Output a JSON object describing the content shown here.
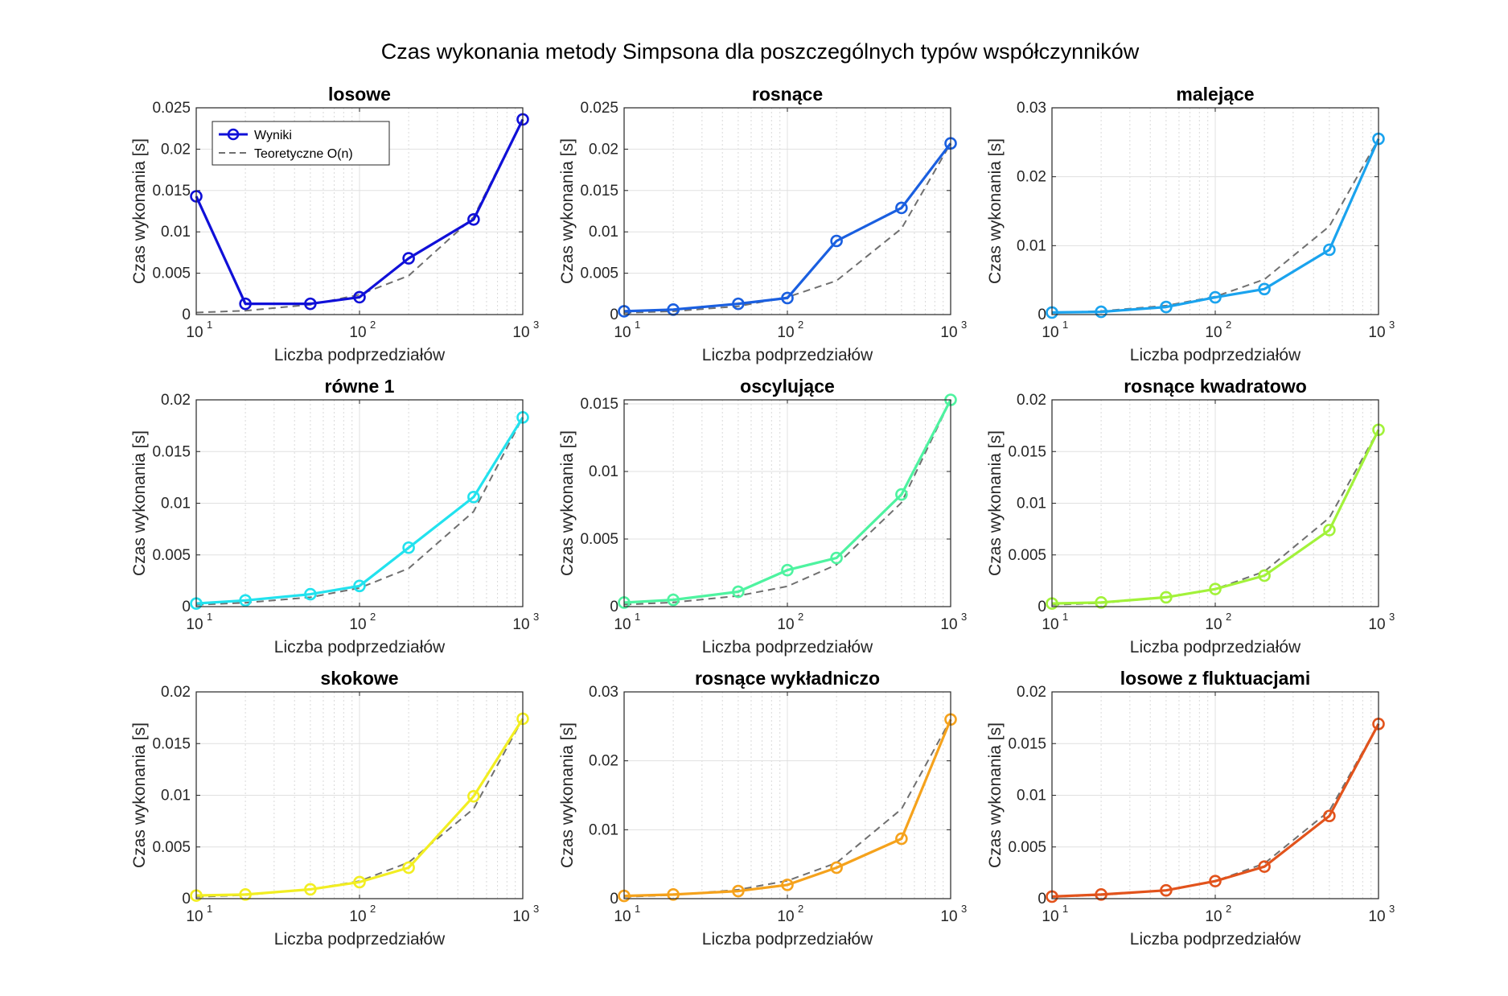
{
  "figure_title": "Czas wykonania metody Simpsona dla poszczególnych typów współczynników",
  "chart_data": [
    {
      "type": "line",
      "title": "losowe",
      "xlabel": "Liczba podprzedziałów",
      "ylabel": "Czas wykonania [s]",
      "x_scale": "log",
      "xlim": [
        10,
        1000
      ],
      "ylim": [
        0,
        0.025
      ],
      "y_ticks": [
        "0",
        "0.005",
        "0.01",
        "0.015",
        "0.02",
        "0.025"
      ],
      "color": "#1010d8",
      "legend": {
        "position": "top-left",
        "entries": [
          "Wyniki",
          "Teoretyczne O(n)"
        ]
      },
      "x": [
        10,
        20,
        50,
        100,
        200,
        500,
        1000
      ],
      "series": [
        {
          "name": "Wyniki",
          "values": [
            0.0143,
            0.0013,
            0.0013,
            0.0021,
            0.0068,
            0.0115,
            0.0236
          ]
        },
        {
          "name": "Teoretyczne O(n)",
          "values": [
            0.00024,
            0.00047,
            0.0012,
            0.0024,
            0.0047,
            0.0118,
            0.0236
          ]
        }
      ]
    },
    {
      "type": "line",
      "title": "rosnące",
      "xlabel": "Liczba podprzedziałów",
      "ylabel": "Czas wykonania [s]",
      "x_scale": "log",
      "xlim": [
        10,
        1000
      ],
      "ylim": [
        0,
        0.025
      ],
      "y_ticks": [
        "0",
        "0.005",
        "0.01",
        "0.015",
        "0.02",
        "0.025"
      ],
      "color": "#1a5fe0",
      "x": [
        10,
        20,
        50,
        100,
        200,
        500,
        1000
      ],
      "series": [
        {
          "name": "Wyniki",
          "values": [
            0.0004,
            0.0006,
            0.0013,
            0.002,
            0.0089,
            0.0129,
            0.0207
          ]
        },
        {
          "name": "Teoretyczne O(n)",
          "values": [
            0.0002,
            0.0004,
            0.001,
            0.0021,
            0.0041,
            0.0104,
            0.0207
          ]
        }
      ]
    },
    {
      "type": "line",
      "title": "malejące",
      "xlabel": "Liczba podprzedziałów",
      "ylabel": "Czas wykonania [s]",
      "x_scale": "log",
      "xlim": [
        10,
        1000
      ],
      "ylim": [
        0,
        0.03
      ],
      "y_ticks": [
        "0",
        "0.01",
        "0.02",
        "0.03"
      ],
      "color": "#1aa3ee",
      "x": [
        10,
        20,
        50,
        100,
        200,
        500,
        1000
      ],
      "series": [
        {
          "name": "Wyniki",
          "values": [
            0.0003,
            0.0004,
            0.0011,
            0.0025,
            0.0037,
            0.0094,
            0.0255
          ]
        },
        {
          "name": "Teoretyczne O(n)",
          "values": [
            0.00026,
            0.00051,
            0.0013,
            0.0026,
            0.0051,
            0.0128,
            0.0255
          ]
        }
      ]
    },
    {
      "type": "line",
      "title": "równe 1",
      "xlabel": "Liczba podprzedziałów",
      "ylabel": "Czas wykonania [s]",
      "x_scale": "log",
      "xlim": [
        10,
        1000
      ],
      "ylim": [
        0,
        0.02
      ],
      "y_ticks": [
        "0",
        "0.005",
        "0.01",
        "0.015",
        "0.02"
      ],
      "color": "#22e2ee",
      "x": [
        10,
        20,
        50,
        100,
        200,
        500,
        1000
      ],
      "series": [
        {
          "name": "Wyniki",
          "values": [
            0.0003,
            0.0006,
            0.0012,
            0.002,
            0.0057,
            0.0106,
            0.0183
          ]
        },
        {
          "name": "Teoretyczne O(n)",
          "values": [
            0.00018,
            0.00037,
            0.0009,
            0.0018,
            0.0037,
            0.0092,
            0.0183
          ]
        }
      ]
    },
    {
      "type": "line",
      "title": "oscylujące",
      "xlabel": "Liczba podprzedziałów",
      "ylabel": "Czas wykonania [s]",
      "x_scale": "log",
      "xlim": [
        10,
        1000
      ],
      "ylim": [
        0,
        0.0153
      ],
      "y_ticks": [
        "0",
        "0.005",
        "0.01",
        "0.015"
      ],
      "color": "#4ef3a0",
      "x": [
        10,
        20,
        50,
        100,
        200,
        500,
        1000
      ],
      "series": [
        {
          "name": "Wyniki",
          "values": [
            0.0003,
            0.0005,
            0.0011,
            0.0027,
            0.0036,
            0.0083,
            0.0153
          ]
        },
        {
          "name": "Teoretyczne O(n)",
          "values": [
            0.00015,
            0.00031,
            0.0008,
            0.0015,
            0.0031,
            0.0077,
            0.0153
          ]
        }
      ]
    },
    {
      "type": "line",
      "title": "rosnące kwadratowo",
      "xlabel": "Liczba podprzedziałów",
      "ylabel": "Czas wykonania [s]",
      "x_scale": "log",
      "xlim": [
        10,
        1000
      ],
      "ylim": [
        0,
        0.02
      ],
      "y_ticks": [
        "0",
        "0.005",
        "0.01",
        "0.015",
        "0.02"
      ],
      "color": "#a2f23a",
      "x": [
        10,
        20,
        50,
        100,
        200,
        500,
        1000
      ],
      "series": [
        {
          "name": "Wyniki",
          "values": [
            0.0003,
            0.0004,
            0.0009,
            0.0017,
            0.003,
            0.0074,
            0.0171
          ]
        },
        {
          "name": "Teoretyczne O(n)",
          "values": [
            0.00017,
            0.00034,
            0.0009,
            0.0017,
            0.0034,
            0.0086,
            0.0171
          ]
        }
      ]
    },
    {
      "type": "line",
      "title": "skokowe",
      "xlabel": "Liczba podprzedziałów",
      "ylabel": "Czas wykonania [s]",
      "x_scale": "log",
      "xlim": [
        10,
        1000
      ],
      "ylim": [
        0,
        0.02
      ],
      "y_ticks": [
        "0",
        "0.005",
        "0.01",
        "0.015",
        "0.02"
      ],
      "color": "#f2ee22",
      "x": [
        10,
        20,
        50,
        100,
        200,
        500,
        1000
      ],
      "series": [
        {
          "name": "Wyniki",
          "values": [
            0.0003,
            0.0004,
            0.0009,
            0.0016,
            0.003,
            0.0099,
            0.0174
          ]
        },
        {
          "name": "Teoretyczne O(n)",
          "values": [
            0.00017,
            0.00035,
            0.0009,
            0.0017,
            0.0035,
            0.0087,
            0.0174
          ]
        }
      ]
    },
    {
      "type": "line",
      "title": "rosnące wykładniczo",
      "xlabel": "Liczba podprzedziałów",
      "ylabel": "Czas wykonania [s]",
      "x_scale": "log",
      "xlim": [
        10,
        1000
      ],
      "ylim": [
        0,
        0.03
      ],
      "y_ticks": [
        "0",
        "0.01",
        "0.02",
        "0.03"
      ],
      "color": "#f5a21c",
      "x": [
        10,
        20,
        50,
        100,
        200,
        500,
        1000
      ],
      "series": [
        {
          "name": "Wyniki",
          "values": [
            0.0004,
            0.0006,
            0.0011,
            0.002,
            0.0045,
            0.0087,
            0.026
          ]
        },
        {
          "name": "Teoretyczne O(n)",
          "values": [
            0.00026,
            0.00052,
            0.0013,
            0.0026,
            0.0052,
            0.013,
            0.026
          ]
        }
      ]
    },
    {
      "type": "line",
      "title": "losowe z fluktuacjami",
      "xlabel": "Liczba podprzedziałów",
      "ylabel": "Czas wykonania [s]",
      "x_scale": "log",
      "xlim": [
        10,
        1000
      ],
      "ylim": [
        0,
        0.02
      ],
      "y_ticks": [
        "0",
        "0.005",
        "0.01",
        "0.015",
        "0.02"
      ],
      "color": "#e2531c",
      "x": [
        10,
        20,
        50,
        100,
        200,
        500,
        1000
      ],
      "series": [
        {
          "name": "Wyniki",
          "values": [
            0.0002,
            0.0004,
            0.0008,
            0.0017,
            0.0031,
            0.008,
            0.0169
          ]
        },
        {
          "name": "Teoretyczne O(n)",
          "values": [
            0.00017,
            0.00034,
            0.0008,
            0.0017,
            0.0034,
            0.0085,
            0.0169
          ]
        }
      ]
    }
  ]
}
